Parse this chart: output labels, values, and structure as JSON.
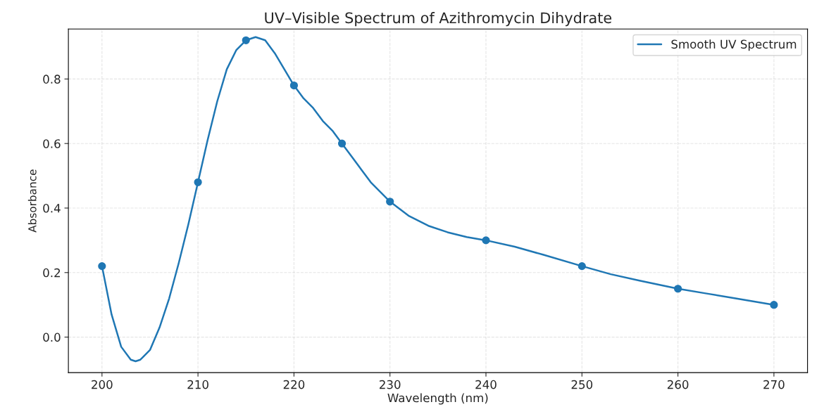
{
  "chart_data": {
    "type": "line",
    "title": "UV–Visible Spectrum of Azithromycin Dihydrate",
    "xlabel": "Wavelength (nm)",
    "ylabel": "Absorbance",
    "xlim": [
      196.5,
      273.5
    ],
    "ylim": [
      -0.11,
      0.955
    ],
    "xticks": [
      200,
      210,
      220,
      230,
      240,
      250,
      260,
      270
    ],
    "yticks": [
      {
        "value": 0,
        "label": "0.0"
      },
      0.2,
      0.4,
      0.6,
      0.8
    ],
    "grid": true,
    "legend": "top right",
    "series": [
      {
        "name": "Smooth UV Spectrum",
        "color": "#1f77b4",
        "marker": "none",
        "line_style": "solid",
        "x": [
          200,
          201,
          202,
          203,
          203.5,
          204,
          205,
          206,
          207,
          208,
          209,
          210,
          211,
          212,
          213,
          214,
          215,
          216,
          217,
          218,
          219,
          220,
          221,
          222,
          223,
          224,
          225,
          226,
          227,
          228,
          229,
          230,
          232,
          234,
          236,
          238,
          240,
          243,
          246,
          250,
          253,
          256,
          260,
          263,
          266,
          270
        ],
        "values": [
          0.22,
          0.07,
          -0.03,
          -0.07,
          -0.075,
          -0.07,
          -0.04,
          0.03,
          0.12,
          0.23,
          0.35,
          0.48,
          0.61,
          0.73,
          0.83,
          0.89,
          0.92,
          0.93,
          0.92,
          0.88,
          0.83,
          0.78,
          0.74,
          0.71,
          0.67,
          0.64,
          0.6,
          0.56,
          0.52,
          0.48,
          0.45,
          0.42,
          0.375,
          0.345,
          0.325,
          0.31,
          0.3,
          0.28,
          0.255,
          0.22,
          0.195,
          0.175,
          0.15,
          0.135,
          0.12,
          0.1
        ]
      },
      {
        "type": "scatter",
        "color": "#1f77b4",
        "marker": "circle",
        "x": [
          200,
          210,
          215,
          220,
          225,
          230,
          240,
          250,
          260,
          270
        ],
        "values": [
          0.22,
          0.48,
          0.92,
          0.78,
          0.6,
          0.42,
          0.3,
          0.22,
          0.15,
          0.1
        ]
      }
    ]
  }
}
